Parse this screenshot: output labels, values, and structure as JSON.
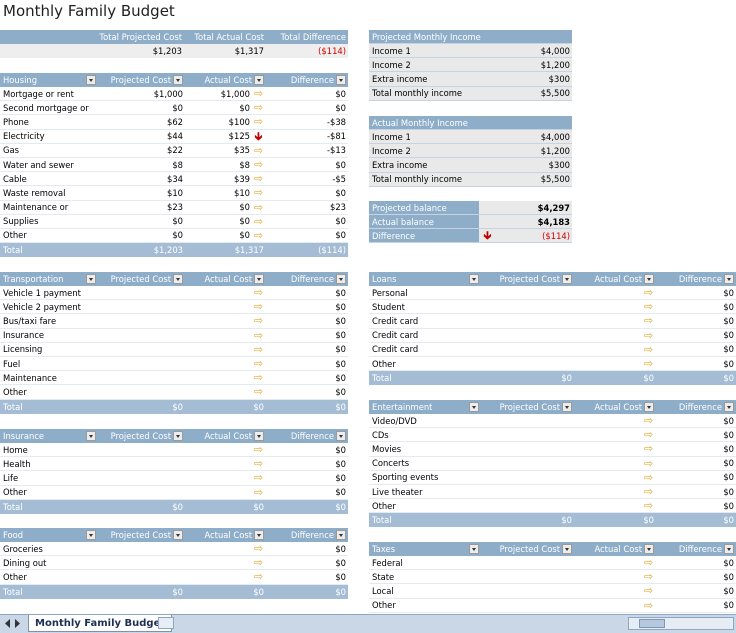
{
  "title": "Monthly Family Budget",
  "sheet_tab": "Monthly Family Budget",
  "colors": {
    "header_bg": "#8eadc9",
    "total_bg": "#a4bdd4",
    "arrow_flat": "#e8a530",
    "arrow_down": "#c00000",
    "negative": "#d00000"
  },
  "icons": {
    "dropdown": "dropdown-arrow-icon",
    "flat": "arrow-right-icon",
    "over_budget": "arrow-down-icon"
  },
  "summary": {
    "headers": [
      "Total Projected Cost",
      "Total Actual Cost",
      "Total Difference"
    ],
    "values": [
      "$1,203",
      "$1,317",
      "($114)"
    ]
  },
  "projected_income": {
    "title": "Projected Monthly Income",
    "rows": [
      {
        "label": "Income 1",
        "value": "$4,000"
      },
      {
        "label": "Income 2",
        "value": "$1,200"
      },
      {
        "label": "Extra income",
        "value": "$300"
      },
      {
        "label": "Total monthly income",
        "value": "$5,500"
      }
    ]
  },
  "actual_income": {
    "title": "Actual Monthly Income",
    "rows": [
      {
        "label": "Income 1",
        "value": "$4,000"
      },
      {
        "label": "Income 2",
        "value": "$1,200"
      },
      {
        "label": "Extra income",
        "value": "$300"
      },
      {
        "label": "Total monthly income",
        "value": "$5,500"
      }
    ]
  },
  "balance": {
    "rows": [
      {
        "label": "Projected balance",
        "value": "$4,297"
      },
      {
        "label": "Actual balance",
        "value": "$4,183"
      },
      {
        "label": "Difference",
        "value": "($114)"
      }
    ]
  },
  "columns": {
    "projected": "Projected Cost",
    "actual": "Actual Cost",
    "difference": "Difference"
  },
  "housing": {
    "title": "Housing",
    "rows": [
      {
        "label": "Mortgage or rent",
        "projected": "$1,000",
        "actual": "$1,000",
        "arrow": "flat",
        "difference": "$0"
      },
      {
        "label": "Second mortgage or",
        "projected": "$0",
        "actual": "$0",
        "arrow": "flat",
        "difference": "$0"
      },
      {
        "label": "Phone",
        "projected": "$62",
        "actual": "$100",
        "arrow": "flat",
        "difference": "-$38"
      },
      {
        "label": "Electricity",
        "projected": "$44",
        "actual": "$125",
        "arrow": "down",
        "difference": "-$81"
      },
      {
        "label": "Gas",
        "projected": "$22",
        "actual": "$35",
        "arrow": "flat",
        "difference": "-$13"
      },
      {
        "label": "Water and sewer",
        "projected": "$8",
        "actual": "$8",
        "arrow": "flat",
        "difference": "$0"
      },
      {
        "label": "Cable",
        "projected": "$34",
        "actual": "$39",
        "arrow": "flat",
        "difference": "-$5"
      },
      {
        "label": "Waste removal",
        "projected": "$10",
        "actual": "$10",
        "arrow": "flat",
        "difference": "$0"
      },
      {
        "label": "Maintenance or",
        "projected": "$23",
        "actual": "$0",
        "arrow": "flat",
        "difference": "$23"
      },
      {
        "label": "Supplies",
        "projected": "$0",
        "actual": "$0",
        "arrow": "flat",
        "difference": "$0"
      },
      {
        "label": "Other",
        "projected": "$0",
        "actual": "$0",
        "arrow": "flat",
        "difference": "$0"
      }
    ],
    "total": {
      "label": "Total",
      "projected": "$1,203",
      "actual": "$1,317",
      "difference": "($114)"
    }
  },
  "transportation": {
    "title": "Transportation",
    "rows": [
      {
        "label": "Vehicle 1 payment",
        "difference": "$0"
      },
      {
        "label": "Vehicle 2 payment",
        "difference": "$0"
      },
      {
        "label": "Bus/taxi fare",
        "difference": "$0"
      },
      {
        "label": "Insurance",
        "difference": "$0"
      },
      {
        "label": "Licensing",
        "difference": "$0"
      },
      {
        "label": "Fuel",
        "difference": "$0"
      },
      {
        "label": "Maintenance",
        "difference": "$0"
      },
      {
        "label": "Other",
        "difference": "$0"
      }
    ],
    "total": {
      "label": "Total",
      "projected": "$0",
      "actual": "$0",
      "difference": "$0"
    }
  },
  "insurance": {
    "title": "Insurance",
    "rows": [
      {
        "label": "Home",
        "difference": "$0"
      },
      {
        "label": "Health",
        "difference": "$0"
      },
      {
        "label": "Life",
        "difference": "$0"
      },
      {
        "label": "Other",
        "difference": "$0"
      }
    ],
    "total": {
      "label": "Total",
      "projected": "$0",
      "actual": "$0",
      "difference": "$0"
    }
  },
  "food": {
    "title": "Food",
    "rows": [
      {
        "label": "Groceries",
        "difference": "$0"
      },
      {
        "label": "Dining out",
        "difference": "$0"
      },
      {
        "label": "Other",
        "difference": "$0"
      }
    ],
    "total": {
      "label": "Total",
      "projected": "$0",
      "actual": "$0",
      "difference": "$0"
    }
  },
  "loans": {
    "title": "Loans",
    "rows": [
      {
        "label": "Personal",
        "difference": "$0"
      },
      {
        "label": "Student",
        "difference": "$0"
      },
      {
        "label": "Credit card",
        "difference": "$0"
      },
      {
        "label": "Credit card",
        "difference": "$0"
      },
      {
        "label": "Credit card",
        "difference": "$0"
      },
      {
        "label": "Other",
        "difference": "$0"
      }
    ],
    "total": {
      "label": "Total",
      "projected": "$0",
      "actual": "$0",
      "difference": "$0"
    }
  },
  "entertainment": {
    "title": "Entertainment",
    "rows": [
      {
        "label": "Video/DVD",
        "difference": "$0"
      },
      {
        "label": "CDs",
        "difference": "$0"
      },
      {
        "label": "Movies",
        "difference": "$0"
      },
      {
        "label": "Concerts",
        "difference": "$0"
      },
      {
        "label": "Sporting events",
        "difference": "$0"
      },
      {
        "label": "Live theater",
        "difference": "$0"
      },
      {
        "label": "Other",
        "difference": "$0"
      }
    ],
    "total": {
      "label": "Total",
      "projected": "$0",
      "actual": "$0",
      "difference": "$0"
    }
  },
  "taxes": {
    "title": "Taxes",
    "rows": [
      {
        "label": "Federal",
        "difference": "$0"
      },
      {
        "label": "State",
        "difference": "$0"
      },
      {
        "label": "Local",
        "difference": "$0"
      },
      {
        "label": "Other",
        "difference": "$0"
      }
    ]
  }
}
